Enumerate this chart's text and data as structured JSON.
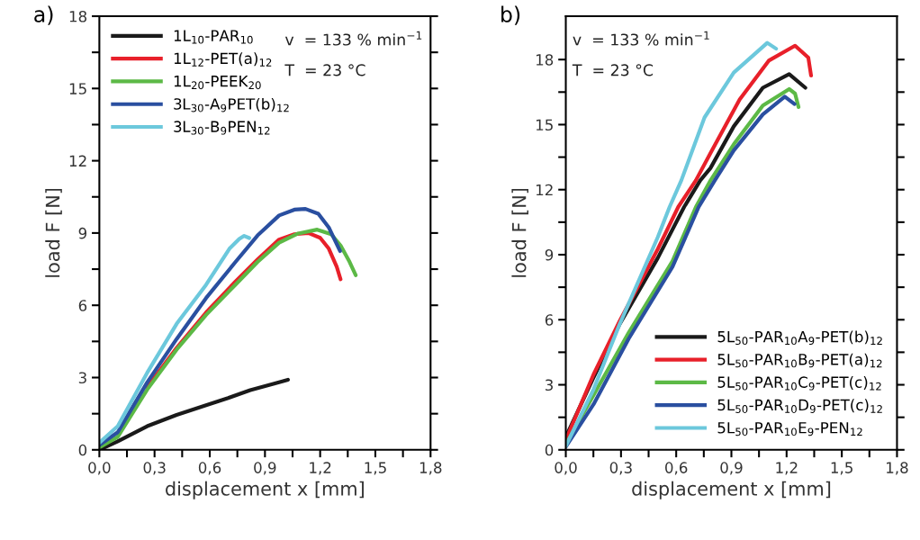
{
  "chart_data": [
    {
      "type": "line",
      "xlabel": "displacement x [mm]",
      "ylabel": "load F [N]",
      "legend": "top left",
      "grid": false,
      "marker": "none",
      "line_style": "solid",
      "xlim": [
        0,
        1.8
      ],
      "ylim": [
        0,
        18
      ],
      "xticks": [
        {
          "value": 0,
          "label": "0,0"
        },
        {
          "value": 0.15,
          "label": null
        },
        {
          "value": 0.3,
          "label": "0,3"
        },
        {
          "value": 0.45,
          "label": null
        },
        {
          "value": 0.6,
          "label": "0,6"
        },
        {
          "value": 0.75,
          "label": null
        },
        {
          "value": 0.9,
          "label": "0,9"
        },
        {
          "value": 1.05,
          "label": null
        },
        {
          "value": 1.2,
          "label": "1,2"
        },
        {
          "value": 1.35,
          "label": null
        },
        {
          "value": 1.5,
          "label": "1,5"
        },
        {
          "value": 1.65,
          "label": null
        },
        {
          "value": 1.8,
          "label": "1,8"
        }
      ],
      "yticks": [
        0,
        {
          "value": 1.5,
          "label": null
        },
        3,
        {
          "value": 4.5,
          "label": null
        },
        6,
        {
          "value": 7.5,
          "label": null
        },
        9,
        {
          "value": 10.5,
          "label": null
        },
        12,
        {
          "value": 13.5,
          "label": null
        },
        15,
        {
          "value": 16.5,
          "label": null
        },
        18
      ],
      "annotations": [
        "a)",
        "v  = 133 % min$^{−1}$",
        "T  = 23 °C"
      ],
      "series": [
        {
          "name": "1L$_{10}$-PAR$_{10}$",
          "color": "#1a1a1a",
          "x": [
            0,
            0.1,
            0.26,
            0.42,
            0.58,
            0.7,
            0.82,
            0.95,
            1.025
          ],
          "values": [
            0,
            0.35,
            0.98,
            1.45,
            1.85,
            2.15,
            2.48,
            2.75,
            2.91
          ]
        },
        {
          "name": "1L$_{12}$-PET(a)$_{12}$",
          "color": "#e8202a",
          "x": [
            0.26,
            0.42,
            0.58,
            0.739,
            0.86,
            0.977,
            1.06,
            1.136,
            1.2,
            1.247,
            1.29,
            1.311
          ],
          "values": [
            2.6,
            4.23,
            5.7,
            6.98,
            7.9,
            8.73,
            8.95,
            9.0,
            8.8,
            8.35,
            7.6,
            7.08
          ]
        },
        {
          "name": "1L$_{20}$-PEEK$_{20}$",
          "color": "#5cb946",
          "x": [
            0,
            0.1,
            0.26,
            0.42,
            0.58,
            0.739,
            0.86,
            0.977,
            1.08,
            1.184,
            1.26,
            1.311,
            1.36,
            1.393
          ],
          "values": [
            0.1,
            0.54,
            2.5,
            4.16,
            5.6,
            6.85,
            7.8,
            8.6,
            8.98,
            9.14,
            8.95,
            8.48,
            7.8,
            7.25
          ]
        },
        {
          "name": "3L$_{30}$-A$_{9}$PET(b)$_{12}$",
          "color": "#2a4fa0",
          "x": [
            0,
            0.1,
            0.26,
            0.42,
            0.58,
            0.739,
            0.86,
            0.977,
            1.06,
            1.12,
            1.19,
            1.247,
            1.308
          ],
          "values": [
            0.2,
            0.73,
            2.8,
            4.6,
            6.3,
            7.79,
            8.9,
            9.73,
            9.97,
            10.0,
            9.8,
            9.23,
            8.25
          ]
        },
        {
          "name": "3L$_{30}$-B$_{9}$PEN$_{12}$",
          "color": "#6cc8dc",
          "x": [
            0,
            0.1,
            0.26,
            0.42,
            0.58,
            0.707,
            0.76,
            0.787,
            0.815
          ],
          "values": [
            0.29,
            0.98,
            3.2,
            5.23,
            6.85,
            8.35,
            8.75,
            8.88,
            8.79
          ]
        }
      ]
    },
    {
      "type": "line",
      "xlabel": "displacement x [mm]",
      "ylabel": "load F [N]",
      "legend": "bottom right",
      "grid": false,
      "marker": "none",
      "line_style": "solid",
      "xlim": [
        0,
        1.8
      ],
      "ylim": [
        0,
        20
      ],
      "xticks": [
        {
          "value": 0,
          "label": "0,0"
        },
        {
          "value": 0.15,
          "label": null
        },
        {
          "value": 0.3,
          "label": "0,3"
        },
        {
          "value": 0.45,
          "label": null
        },
        {
          "value": 0.6,
          "label": "0,6"
        },
        {
          "value": 0.75,
          "label": null
        },
        {
          "value": 0.9,
          "label": "0,9"
        },
        {
          "value": 1.05,
          "label": null
        },
        {
          "value": 1.2,
          "label": "1,2"
        },
        {
          "value": 1.35,
          "label": null
        },
        {
          "value": 1.5,
          "label": "1,5"
        },
        {
          "value": 1.65,
          "label": null
        },
        {
          "value": 1.8,
          "label": "1,8"
        }
      ],
      "yticks": [
        0,
        {
          "value": 1.5,
          "label": null
        },
        3,
        {
          "value": 4.5,
          "label": null
        },
        6,
        {
          "value": 7.5,
          "label": null
        },
        9,
        {
          "value": 10.5,
          "label": null
        },
        12,
        {
          "value": 13.5,
          "label": null
        },
        15,
        {
          "value": 16.5,
          "label": null
        },
        18
      ],
      "annotations": [
        "b)",
        "v  = 133 % min$^{−1}$",
        "T  = 23 °C"
      ],
      "series": [
        {
          "name": "5L$_{50}$-PAR$_{10}$A$_{9}$-PET(b)$_{12}$",
          "color": "#1a1a1a",
          "x": [
            0,
            0.151,
            0.294,
            0.5,
            0.643,
            0.731,
            0.786,
            0.913,
            1.071,
            1.214,
            1.302
          ],
          "values": [
            0.59,
            3.34,
            5.82,
            8.85,
            11.2,
            12.43,
            12.99,
            14.92,
            16.7,
            17.33,
            16.7
          ]
        },
        {
          "name": "5L$_{50}$-PAR$_{10}$B$_{9}$-PET(a)$_{12}$",
          "color": "#e8202a",
          "x": [
            0,
            0.151,
            0.294,
            0.5,
            0.611,
            0.707,
            0.786,
            0.945,
            1.103,
            1.246,
            1.318,
            1.333
          ],
          "values": [
            0.45,
            3.48,
            5.96,
            9.26,
            11.2,
            12.43,
            13.68,
            16.16,
            17.95,
            18.64,
            18.09,
            17.26
          ]
        },
        {
          "name": "5L$_{50}$-PAR$_{10}$C$_{9}$-PET(c)$_{12}$",
          "color": "#5cb946",
          "x": [
            0,
            0.151,
            0.342,
            0.58,
            0.707,
            0.787,
            0.913,
            1.071,
            1.214,
            1.246,
            1.265
          ],
          "values": [
            0.25,
            2.52,
            5.41,
            8.71,
            11.2,
            12.43,
            14.09,
            15.88,
            16.64,
            16.43,
            15.81
          ]
        },
        {
          "name": "5L$_{50}$-PAR$_{10}$D$_{9}$-PET(c)$_{12}$",
          "color": "#2a4fa0",
          "x": [
            0,
            0.151,
            0.342,
            0.58,
            0.722,
            0.81,
            0.913,
            1.071,
            1.19,
            1.243
          ],
          "values": [
            0.14,
            2.1,
            5.13,
            8.44,
            11.2,
            12.43,
            13.81,
            15.47,
            16.29,
            15.95
          ]
        },
        {
          "name": "5L$_{50}$-PAR$_{10}$E$_{9}$-PEN$_{12}$",
          "color": "#6cc8dc",
          "x": [
            0,
            0.151,
            0.294,
            0.5,
            0.564,
            0.628,
            0.754,
            0.913,
            1.095,
            1.143
          ],
          "values": [
            0.18,
            2.79,
            5.82,
            9.81,
            11.2,
            12.43,
            15.33,
            17.4,
            18.77,
            18.5
          ]
        }
      ]
    }
  ]
}
